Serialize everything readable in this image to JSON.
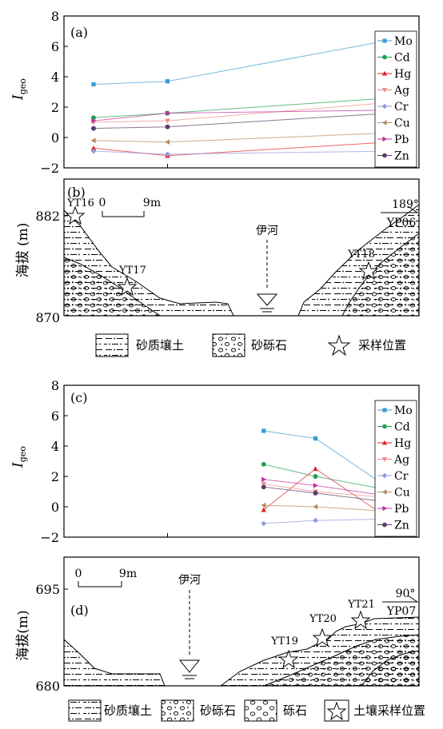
{
  "chart_data": [
    {
      "type": "line",
      "panel_label": "(a)",
      "ylabel": "I",
      "ylabel_sub": "geo",
      "ylim": [
        -2,
        8
      ],
      "yticks": [
        "−2",
        "0",
        "2",
        "4",
        "6",
        "8"
      ],
      "legend": "top-right",
      "series": [
        {
          "name": "Mo",
          "color": "#3a9bd1",
          "marker": "square",
          "points": [
            [
              0,
              3.5
            ],
            [
              1,
              3.7
            ],
            [
              4,
              6.4
            ]
          ]
        },
        {
          "name": "Cd",
          "color": "#22a050",
          "marker": "circle",
          "points": [
            [
              0,
              1.3
            ],
            [
              1,
              1.6
            ],
            [
              4,
              2.6
            ]
          ]
        },
        {
          "name": "Hg",
          "color": "#e0242b",
          "marker": "triangle-up",
          "points": [
            [
              0,
              -0.7
            ],
            [
              1,
              -1.2
            ],
            [
              4,
              -0.3
            ]
          ]
        },
        {
          "name": "Ag",
          "color": "#f08a8a",
          "marker": "triangle-down",
          "points": [
            [
              0,
              1.0
            ],
            [
              1,
              1.1
            ],
            [
              4,
              2.3
            ]
          ]
        },
        {
          "name": "Cr",
          "color": "#8f98dc",
          "marker": "diamond",
          "points": [
            [
              0,
              -0.9
            ],
            [
              1,
              -1.1
            ],
            [
              4,
              -0.9
            ]
          ]
        },
        {
          "name": "Cu",
          "color": "#b58a5f",
          "marker": "triangle-left",
          "points": [
            [
              0,
              -0.2
            ],
            [
              1,
              -0.3
            ],
            [
              4,
              0.3
            ]
          ]
        },
        {
          "name": "Pb",
          "color": "#c02fa0",
          "marker": "triangle-right",
          "points": [
            [
              0,
              1.1
            ],
            [
              1,
              1.6
            ],
            [
              4,
              1.8
            ]
          ]
        },
        {
          "name": "Zn",
          "color": "#5a3e6a",
          "marker": "circle",
          "points": [
            [
              0,
              0.6
            ],
            [
              1,
              0.7
            ],
            [
              4,
              1.6
            ]
          ]
        }
      ]
    },
    {
      "type": "line",
      "panel_label": "(c)",
      "ylabel": "I",
      "ylabel_sub": "geo",
      "ylim": [
        -2,
        8
      ],
      "yticks": [
        "−2",
        "0",
        "2",
        "4",
        "6",
        "8"
      ],
      "legend": "top-right",
      "series": [
        {
          "name": "Mo",
          "color": "#3a9bd1",
          "marker": "square",
          "points": [
            [
              2.3,
              5.0
            ],
            [
              3.0,
              4.5
            ],
            [
              4.0,
              1.2
            ]
          ]
        },
        {
          "name": "Cd",
          "color": "#22a050",
          "marker": "circle",
          "points": [
            [
              2.3,
              2.8
            ],
            [
              3.0,
              2.0
            ],
            [
              4.0,
              1.1
            ]
          ]
        },
        {
          "name": "Hg",
          "color": "#e0242b",
          "marker": "triangle-up",
          "points": [
            [
              2.3,
              -0.2
            ],
            [
              3.0,
              2.5
            ],
            [
              4.0,
              -0.8
            ]
          ]
        },
        {
          "name": "Ag",
          "color": "#f08a8a",
          "marker": "triangle-down",
          "points": [
            [
              2.3,
              1.5
            ],
            [
              3.0,
              1.0
            ],
            [
              4.0,
              0.6
            ]
          ]
        },
        {
          "name": "Cr",
          "color": "#8f98dc",
          "marker": "diamond",
          "points": [
            [
              2.3,
              -1.1
            ],
            [
              3.0,
              -0.9
            ],
            [
              4.0,
              -0.8
            ]
          ]
        },
        {
          "name": "Cu",
          "color": "#b58a5f",
          "marker": "triangle-left",
          "points": [
            [
              2.3,
              0.1
            ],
            [
              3.0,
              0.0
            ],
            [
              4.0,
              -0.3
            ]
          ]
        },
        {
          "name": "Pb",
          "color": "#c02fa0",
          "marker": "triangle-right",
          "points": [
            [
              2.3,
              1.8
            ],
            [
              3.0,
              1.4
            ],
            [
              4.0,
              0.7
            ]
          ]
        },
        {
          "name": "Zn",
          "color": "#5a3e6a",
          "marker": "circle",
          "points": [
            [
              2.3,
              1.3
            ],
            [
              3.0,
              0.9
            ],
            [
              4.0,
              0.3
            ]
          ]
        }
      ]
    }
  ],
  "section_b": {
    "panel_label": "(b)",
    "ylabel": "海拔 (m)",
    "y_ticks": [
      "870",
      "882"
    ],
    "scale_start": "0",
    "scale_end": "9m",
    "river_label": "伊河",
    "orientation_angle": "189°",
    "profile_id": "YP06",
    "samples": [
      "YT16",
      "YT17",
      "YT18"
    ]
  },
  "legend_b": {
    "sandy_loam": "砂质壤土",
    "sandy_gravel": "砂砾石",
    "sampling_site": "采样位置"
  },
  "section_d": {
    "panel_label": "(d)",
    "ylabel": "海拔(m)",
    "y_ticks": [
      "680",
      "695"
    ],
    "scale_start": "0",
    "scale_end": "9m",
    "river_label": "伊河",
    "orientation_angle": "90°",
    "profile_id": "YP07",
    "samples": [
      "YT19",
      "YT20",
      "YT21"
    ]
  },
  "legend_d": {
    "sandy_loam": "砂质壤土",
    "sandy_gravel": "砂砾石",
    "gravel": "砾石",
    "soil_sampling_site": "土壤采样位置"
  }
}
